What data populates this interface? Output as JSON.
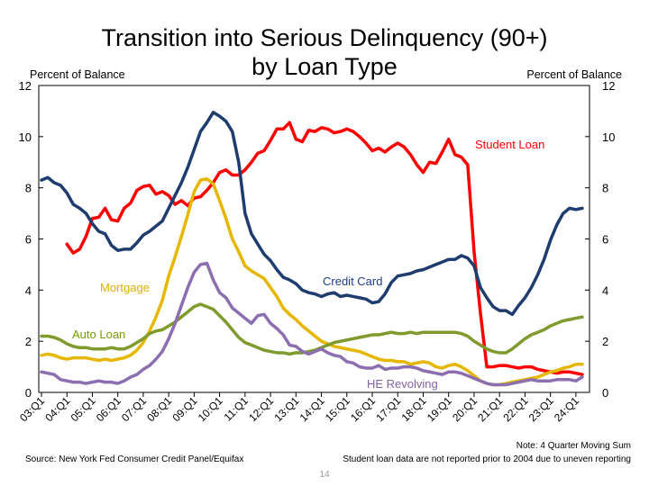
{
  "chart_data": {
    "type": "line",
    "title_line1": "Transition into Serious Delinquency (90+)",
    "title_line2": "by Loan Type",
    "ylabel_left": "Percent of Balance",
    "ylabel_right": "Percent of Balance",
    "ylim": [
      0,
      12
    ],
    "yticks": [
      "0",
      "2",
      "4",
      "6",
      "8",
      "10",
      "12"
    ],
    "x_start": "2003Q1",
    "x_tick_labels": [
      "03:Q1",
      "04:Q1",
      "05:Q1",
      "06:Q1",
      "07:Q1",
      "08:Q1",
      "09:Q1",
      "10:Q1",
      "11:Q1",
      "12:Q1",
      "13:Q1",
      "14:Q1",
      "15:Q1",
      "16:Q1",
      "17:Q1",
      "18:Q1",
      "19:Q1",
      "20:Q1",
      "21:Q1",
      "22:Q1",
      "23:Q1",
      "24:Q1"
    ],
    "grid": false,
    "legend": "inline labels",
    "series": [
      {
        "name": "Student Loan",
        "label_color": "#ff0000",
        "color": "#ff0000",
        "start": "2004Q1",
        "values": [
          5.8,
          5.45,
          5.6,
          6.1,
          6.8,
          6.85,
          7.2,
          6.75,
          6.7,
          7.2,
          7.4,
          7.9,
          8.05,
          8.1,
          7.75,
          7.85,
          7.7,
          7.35,
          7.5,
          7.3,
          7.6,
          7.65,
          7.9,
          8.2,
          8.6,
          8.7,
          8.5,
          8.5,
          8.7,
          9.0,
          9.35,
          9.45,
          9.85,
          10.3,
          10.3,
          10.55,
          9.9,
          9.8,
          10.25,
          10.2,
          10.35,
          10.3,
          10.15,
          10.2,
          10.3,
          10.2,
          10.0,
          9.75,
          9.45,
          9.55,
          9.4,
          9.6,
          9.75,
          9.6,
          9.3,
          8.9,
          8.6,
          9.0,
          8.95,
          9.4,
          9.9,
          9.3,
          9.2,
          8.9,
          5.5,
          3.1,
          1.0,
          1.0,
          1.05,
          1.05,
          1.0,
          0.95,
          1.0,
          1.0,
          0.9,
          0.85,
          0.8,
          0.75,
          0.8,
          0.8,
          0.75,
          0.7
        ]
      },
      {
        "name": "Credit Card",
        "label_color": "#1f3c88",
        "color": "#1f3c6e",
        "start": "2003Q1",
        "values": [
          8.3,
          8.4,
          8.2,
          8.1,
          7.8,
          7.35,
          7.2,
          7.0,
          6.6,
          6.3,
          6.2,
          5.75,
          5.55,
          5.6,
          5.6,
          5.85,
          6.15,
          6.3,
          6.5,
          6.7,
          7.2,
          7.7,
          8.2,
          8.8,
          9.5,
          10.2,
          10.55,
          10.95,
          10.8,
          10.6,
          10.2,
          9.0,
          7.0,
          6.2,
          5.8,
          5.4,
          5.15,
          4.8,
          4.5,
          4.4,
          4.25,
          4.0,
          3.9,
          3.85,
          3.75,
          3.85,
          3.9,
          3.75,
          3.8,
          3.75,
          3.7,
          3.65,
          3.5,
          3.55,
          3.85,
          4.3,
          4.55,
          4.6,
          4.65,
          4.75,
          4.8,
          4.9,
          5.0,
          5.1,
          5.2,
          5.2,
          5.35,
          5.25,
          4.95,
          4.1,
          3.7,
          3.35,
          3.2,
          3.2,
          3.05,
          3.4,
          3.7,
          4.1,
          4.6,
          5.2,
          5.95,
          6.55,
          7.0,
          7.2,
          7.15,
          7.2
        ]
      },
      {
        "name": "Mortgage",
        "label_color": "#e0b000",
        "color": "#e6b700",
        "start": "2003Q1",
        "values": [
          1.45,
          1.5,
          1.45,
          1.35,
          1.3,
          1.35,
          1.35,
          1.35,
          1.3,
          1.25,
          1.3,
          1.25,
          1.3,
          1.35,
          1.45,
          1.65,
          1.95,
          2.4,
          2.95,
          3.6,
          4.55,
          5.3,
          6.1,
          6.95,
          7.85,
          8.3,
          8.35,
          8.15,
          7.5,
          6.8,
          6.0,
          5.5,
          4.95,
          4.75,
          4.6,
          4.45,
          4.1,
          3.75,
          3.3,
          3.05,
          2.85,
          2.6,
          2.4,
          2.2,
          2.0,
          1.9,
          1.8,
          1.75,
          1.7,
          1.65,
          1.6,
          1.5,
          1.4,
          1.3,
          1.25,
          1.25,
          1.2,
          1.2,
          1.1,
          1.15,
          1.2,
          1.15,
          1.0,
          0.95,
          1.05,
          1.1,
          1.0,
          0.85,
          0.65,
          0.45,
          0.35,
          0.3,
          0.3,
          0.35,
          0.4,
          0.45,
          0.5,
          0.55,
          0.6,
          0.7,
          0.8,
          0.85,
          0.95,
          1.0,
          1.1,
          1.1
        ]
      },
      {
        "name": "Auto Loan",
        "label_color": "#7a9a01",
        "color": "#7f9a2d",
        "start": "2003Q1",
        "values": [
          2.2,
          2.2,
          2.15,
          2.05,
          1.9,
          1.8,
          1.75,
          1.75,
          1.7,
          1.7,
          1.7,
          1.75,
          1.7,
          1.7,
          1.8,
          1.95,
          2.1,
          2.3,
          2.4,
          2.45,
          2.6,
          2.75,
          2.95,
          3.15,
          3.35,
          3.45,
          3.35,
          3.25,
          3.0,
          2.75,
          2.45,
          2.15,
          1.95,
          1.85,
          1.75,
          1.65,
          1.6,
          1.55,
          1.55,
          1.5,
          1.55,
          1.55,
          1.6,
          1.65,
          1.75,
          1.85,
          1.95,
          2.0,
          2.05,
          2.1,
          2.15,
          2.2,
          2.25,
          2.25,
          2.3,
          2.35,
          2.3,
          2.3,
          2.35,
          2.3,
          2.35,
          2.35,
          2.35,
          2.35,
          2.35,
          2.35,
          2.3,
          2.2,
          2.0,
          1.85,
          1.7,
          1.6,
          1.55,
          1.55,
          1.7,
          1.9,
          2.1,
          2.25,
          2.35,
          2.45,
          2.6,
          2.7,
          2.8,
          2.85,
          2.9,
          2.95
        ]
      },
      {
        "name": "HE Revolving",
        "label_color": "#8064a2",
        "color": "#8c6fb0",
        "start": "2003Q1",
        "values": [
          0.8,
          0.75,
          0.7,
          0.5,
          0.45,
          0.4,
          0.4,
          0.35,
          0.4,
          0.45,
          0.4,
          0.4,
          0.35,
          0.45,
          0.6,
          0.7,
          0.9,
          1.05,
          1.3,
          1.6,
          2.1,
          2.7,
          3.4,
          4.1,
          4.7,
          5.0,
          5.05,
          4.4,
          3.9,
          3.7,
          3.3,
          3.1,
          2.9,
          2.7,
          3.0,
          3.05,
          2.7,
          2.5,
          2.25,
          1.85,
          1.8,
          1.6,
          1.5,
          1.6,
          1.7,
          1.55,
          1.45,
          1.4,
          1.2,
          1.15,
          1.0,
          0.95,
          0.95,
          1.05,
          0.9,
          0.95,
          0.95,
          1.0,
          1.0,
          0.95,
          0.85,
          0.8,
          0.75,
          0.7,
          0.8,
          0.8,
          0.75,
          0.65,
          0.55,
          0.45,
          0.35,
          0.3,
          0.3,
          0.3,
          0.35,
          0.4,
          0.45,
          0.5,
          0.45,
          0.45,
          0.45,
          0.5,
          0.5,
          0.5,
          0.45,
          0.6
        ]
      }
    ]
  },
  "footer": {
    "source": "Source: New York Fed Consumer Credit Panel/Equifax",
    "note1": "Note: 4 Quarter Moving Sum",
    "note2": "Student loan data are not reported prior to 2004 due to uneven reporting",
    "page": "14"
  }
}
